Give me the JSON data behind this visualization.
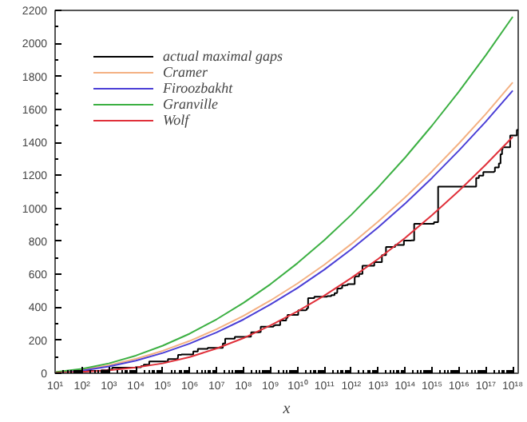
{
  "chart_data": {
    "type": "line",
    "xlabel": "x",
    "log": "x",
    "grid": false,
    "legend": "top left",
    "marker": "none",
    "line_style": "solid",
    "xlim": [
      10,
      1.6e+18
    ],
    "ylim": [
      0,
      2200
    ],
    "xticks": [
      {
        "value": 10.0,
        "label": "10¹"
      },
      {
        "value": 100.0,
        "label": "10²"
      },
      {
        "value": 1000.0,
        "label": "10³"
      },
      {
        "value": 10000.0,
        "label": "10⁴"
      },
      {
        "value": 100000.0,
        "label": "10⁵"
      },
      {
        "value": 1000000.0,
        "label": "10⁶"
      },
      {
        "value": 10000000.0,
        "label": "10⁷"
      },
      {
        "value": 100000000.0,
        "label": "10⁸"
      },
      {
        "value": 1000000000.0,
        "label": "10⁹"
      },
      {
        "value": 10000000000.0,
        "label": "10¹⁰"
      },
      {
        "value": 100000000000.0,
        "label": "10¹¹"
      },
      {
        "value": 1000000000000.0,
        "label": "10¹²"
      },
      {
        "value": 10000000000000.0,
        "label": "10¹³"
      },
      {
        "value": 100000000000000.0,
        "label": "10¹⁴"
      },
      {
        "value": 1000000000000000.0,
        "label": "10¹⁵"
      },
      {
        "value": 1e+16,
        "label": "10¹⁶"
      },
      {
        "value": 1e+17,
        "label": "10¹⁷"
      },
      {
        "value": 1e+18,
        "label": "10¹⁸"
      }
    ],
    "yticks": [
      0,
      200,
      400,
      600,
      800,
      1000,
      1200,
      1400,
      1600,
      1800,
      2000,
      2200
    ],
    "x": [
      10.0,
      100.0,
      1000.0,
      10000.0,
      100000.0,
      1000000.0,
      10000000.0,
      100000000.0,
      1000000000.0,
      10000000000.0,
      100000000000.0,
      1000000000000.0,
      10000000000000.0,
      100000000000000.0,
      1000000000000000.0,
      1e+16,
      1e+17,
      1e+18
    ],
    "series": [
      {
        "name": "actual maximal gaps",
        "color": "#000000",
        "type": "step",
        "x": [
          10,
          23,
          89,
          113,
          523,
          887,
          1129,
          1327,
          9551,
          15683,
          19609,
          31397,
          155921,
          360653,
          370261,
          492113,
          1349533,
          1357201,
          2010733,
          4652353,
          17051707,
          20831323,
          47326693,
          122164747,
          189695659,
          191912783,
          387096133,
          436273009,
          1294268491,
          1453168141,
          2300942549,
          3842610773,
          4302407359,
          10726904659,
          20678048297,
          22367084959,
          25056082087,
          42652618343,
          127976334671,
          182226896239,
          241160624143,
          297501075799,
          303371455241,
          304599508537,
          416608695821,
          461690510011,
          614487453523,
          738832927927,
          1346294310749,
          1408695493609,
          1968188556461,
          2614941710599,
          7177162611713,
          13829048559701,
          19581334192423,
          42842283925351,
          90874329411493,
          171231342420521,
          218209405436543,
          1189459969825483,
          1686994940955803,
          1693182318746371,
          43841547845541059,
          55350776431903243,
          80873624627234849,
          203986478517455989,
          218034721194214273,
          305405826521087869,
          352521223451364323,
          401429925999153707,
          418032645936712127,
          804212830686677669,
          1425172824437699411,
          1.6e+18
        ],
        "values": [
          4,
          6,
          8,
          14,
          18,
          20,
          22,
          34,
          36,
          44,
          52,
          72,
          86,
          96,
          112,
          114,
          118,
          132,
          148,
          154,
          180,
          210,
          220,
          222,
          234,
          248,
          250,
          282,
          288,
          292,
          320,
          336,
          354,
          382,
          384,
          394,
          456,
          464,
          468,
          474,
          486,
          490,
          500,
          514,
          516,
          532,
          534,
          540,
          582,
          588,
          602,
          652,
          674,
          716,
          766,
          778,
          804,
          806,
          906,
          916,
          924,
          1132,
          1184,
          1198,
          1220,
          1224,
          1248,
          1272,
          1328,
          1356,
          1370,
          1442,
          1476,
          1476
        ]
      },
      {
        "name": "Cramer",
        "color": "#f4b183",
        "values": [
          5,
          22,
          49,
          87,
          136,
          196,
          267,
          348,
          441,
          544,
          658,
          783,
          919,
          1066,
          1224,
          1393,
          1572,
          1763
        ]
      },
      {
        "name": "Firoozbakht",
        "color": "#4b3fd6",
        "values": [
          3,
          16,
          41,
          76,
          123,
          180,
          248,
          326,
          417,
          517,
          628,
          751,
          884,
          1028,
          1184,
          1350,
          1526,
          1714
        ]
      },
      {
        "name": "Granville",
        "color": "#3cb043",
        "values": [
          7,
          27,
          60,
          107,
          167,
          240,
          327,
          427,
          540,
          667,
          807,
          960,
          1127,
          1307,
          1501,
          1708,
          1928,
          2161
        ]
      },
      {
        "name": "Wolf",
        "color": "#e0303a",
        "values": [
          2,
          8,
          18,
          35,
          60,
          98,
          150,
          213,
          290,
          375,
          471,
          577,
          693,
          820,
          958,
          1106,
          1265,
          1433
        ]
      }
    ]
  }
}
